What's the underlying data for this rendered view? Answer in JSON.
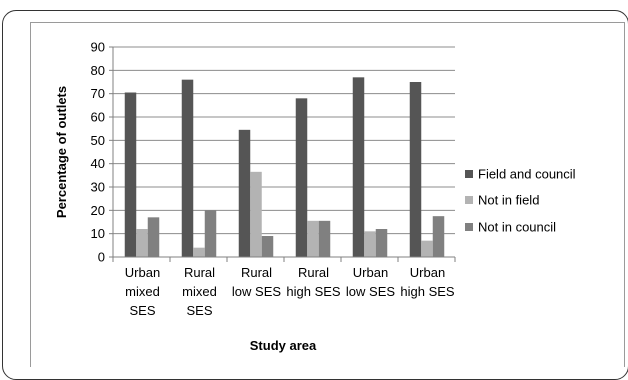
{
  "chart_data": {
    "type": "bar",
    "categories": [
      [
        "Urban",
        "mixed",
        "SES"
      ],
      [
        "Rural",
        "mixed",
        "SES"
      ],
      [
        "Rural",
        "low SES"
      ],
      [
        "Rural",
        "high SES"
      ],
      [
        "Urban",
        "low SES"
      ],
      [
        "Urban",
        "high SES"
      ]
    ],
    "series": [
      {
        "name": "Field and council",
        "color": "#555555",
        "values": [
          70.5,
          76,
          54.5,
          68,
          77,
          75
        ]
      },
      {
        "name": "Not in field",
        "color": "#b3b3b3",
        "values": [
          12,
          4,
          36.5,
          15.5,
          11,
          7
        ]
      },
      {
        "name": "Not in council",
        "color": "#808080",
        "values": [
          17,
          20,
          9,
          15.5,
          12,
          17.5
        ]
      }
    ],
    "title": "",
    "xlabel": "Study area",
    "ylabel": "Percentage of outlets",
    "ylim": [
      0,
      90
    ],
    "yticks": [
      0,
      10,
      20,
      30,
      40,
      50,
      60,
      70,
      80,
      90
    ],
    "grid": true,
    "legend_position": "right"
  }
}
